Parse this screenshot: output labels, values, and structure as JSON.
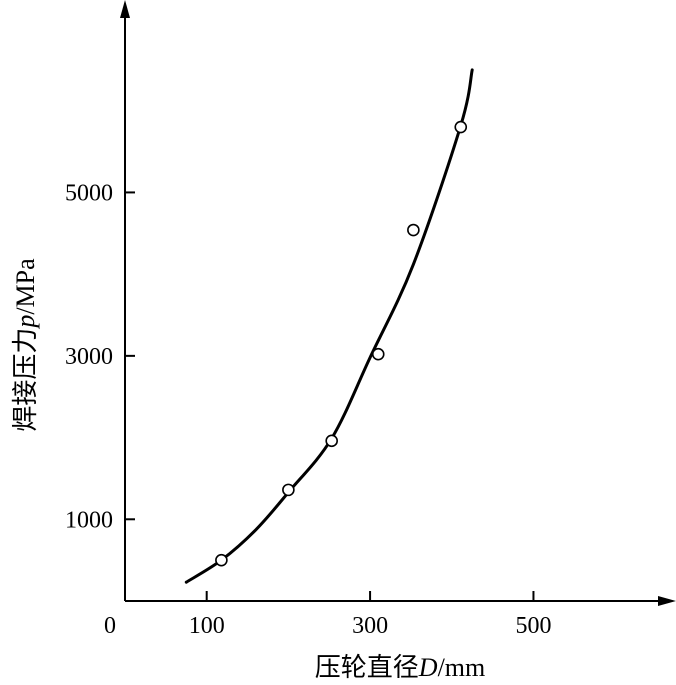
{
  "chart_data": {
    "type": "scatter",
    "xlabel": {
      "prefix": "压轮直径",
      "symbol": "D",
      "unit": "/mm"
    },
    "ylabel": {
      "prefix": "焊接压力",
      "symbol": "p",
      "unit": "/MPa"
    },
    "origin_label": "0",
    "xlim": [
      0,
      650
    ],
    "ylim": [
      0,
      7000
    ],
    "x_ticks": [
      100,
      300,
      500
    ],
    "y_ticks": [
      1000,
      3000,
      5000
    ],
    "x_tick_labels": [
      "100",
      "300",
      "500"
    ],
    "y_tick_labels": [
      "1000",
      "3000",
      "5000"
    ],
    "grid": false,
    "series": [
      {
        "kind": "points",
        "marker": "open-circle",
        "x": [
          118,
          200,
          253,
          310,
          353,
          411
        ],
        "y": [
          500,
          1360,
          1960,
          3020,
          4540,
          5800
        ]
      },
      {
        "kind": "fitted-curve",
        "x": [
          75,
          118,
          160,
          200,
          253,
          300,
          353,
          411,
          425
        ],
        "y": [
          230,
          500,
          870,
          1330,
          1990,
          2980,
          4120,
          5820,
          6500
        ]
      }
    ]
  }
}
